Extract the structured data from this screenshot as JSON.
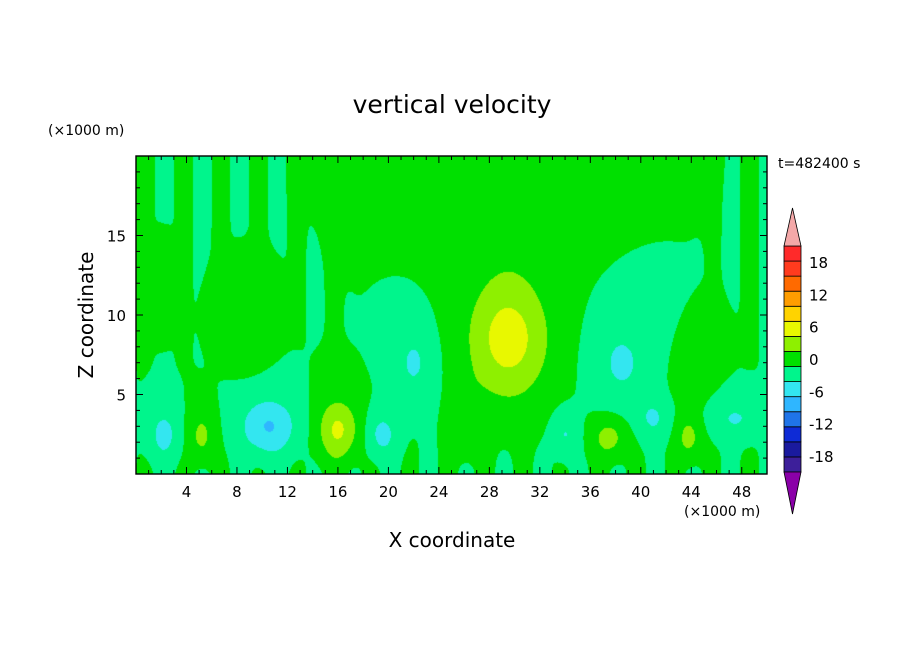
{
  "chart_data": {
    "type": "heatmap",
    "title": "vertical velocity",
    "xlabel": "X coordinate",
    "ylabel": "Z coordinate",
    "x_unit": "(×1000 m)",
    "y_unit": "(×1000 m)",
    "time_label": "t=482400 s",
    "xlim": [
      0,
      50
    ],
    "ylim": [
      0,
      20
    ],
    "x_ticks": [
      4,
      8,
      12,
      16,
      20,
      24,
      28,
      32,
      36,
      40,
      44,
      48
    ],
    "y_ticks": [
      5,
      10,
      15
    ],
    "colorbar": {
      "levels": [
        -21,
        -18,
        -15,
        -12,
        -9,
        -6,
        -3,
        0,
        3,
        6,
        9,
        12,
        15,
        18,
        21
      ],
      "tick_labels": [
        18,
        12,
        6,
        0,
        -6,
        -12,
        -18
      ],
      "colors": [
        "#3d1f9a",
        "#1a1a9e",
        "#0e2bd6",
        "#1f74e8",
        "#2fb6ff",
        "#33e6f0",
        "#00f58c",
        "#00e000",
        "#8ef000",
        "#e8f800",
        "#ffd300",
        "#ff9d00",
        "#ff6a00",
        "#ff3b1e",
        "#ff2a2a"
      ],
      "overflow_top": "#f4a8a8",
      "overflow_bottom": "#8a00a8"
    },
    "background_level_color": "#00f58c",
    "features": [
      {
        "kind": "updraft",
        "x": 29.5,
        "z": 8.5,
        "sx": 3.2,
        "sz": 3.8,
        "w": 7.5
      },
      {
        "kind": "updraft",
        "x": 29.5,
        "z": 16.0,
        "sx": 4.2,
        "sz": 4.0,
        "w": 1.6
      },
      {
        "kind": "updraft",
        "x": 30.5,
        "z": 19.5,
        "sx": 3.5,
        "sz": 1.5,
        "w": 1.5
      },
      {
        "kind": "updraft",
        "x": 16.0,
        "z": 2.8,
        "sx": 1.6,
        "sz": 1.9,
        "w": 6.5
      },
      {
        "kind": "updraft",
        "x": 5.2,
        "z": 2.4,
        "sx": 1.0,
        "sz": 1.6,
        "w": 3.8
      },
      {
        "kind": "updraft",
        "x": 37.5,
        "z": 2.3,
        "sx": 1.4,
        "sz": 1.3,
        "w": 4.2
      },
      {
        "kind": "updraft",
        "x": 43.8,
        "z": 2.3,
        "sx": 1.0,
        "sz": 1.4,
        "w": 4.0
      },
      {
        "kind": "updraft",
        "x": 26.2,
        "z": 3.5,
        "sx": 1.1,
        "sz": 2.2,
        "w": 2.4
      },
      {
        "kind": "updraft",
        "x": 8.8,
        "z": 8.5,
        "sx": 1.4,
        "sz": 1.8,
        "w": 1.3
      },
      {
        "kind": "updraft",
        "x": 2.0,
        "z": 11.0,
        "sx": 0.7,
        "sz": 1.3,
        "w": 1.3
      },
      {
        "kind": "updraft",
        "x": 44.0,
        "z": 6.0,
        "sx": 1.6,
        "sz": 2.0,
        "w": 1.2
      },
      {
        "kind": "downdraft",
        "x": 10.5,
        "z": 3.0,
        "sx": 2.2,
        "sz": 1.8,
        "w": -6.2
      },
      {
        "kind": "downdraft",
        "x": 2.2,
        "z": 2.5,
        "sx": 1.2,
        "sz": 1.6,
        "w": -4.0
      },
      {
        "kind": "downdraft",
        "x": 22.0,
        "z": 7.0,
        "sx": 1.6,
        "sz": 2.4,
        "w": -3.4
      },
      {
        "kind": "downdraft",
        "x": 38.5,
        "z": 7.0,
        "sx": 2.3,
        "sz": 2.8,
        "w": -3.5
      },
      {
        "kind": "downdraft",
        "x": 19.5,
        "z": 2.5,
        "sx": 1.2,
        "sz": 1.4,
        "w": -4.0
      },
      {
        "kind": "downdraft",
        "x": 47.5,
        "z": 3.5,
        "sx": 2.0,
        "sz": 1.2,
        "w": -3.2
      },
      {
        "kind": "downdraft",
        "x": 34.0,
        "z": 2.5,
        "sx": 1.0,
        "sz": 1.4,
        "w": -3.2
      },
      {
        "kind": "downdraft",
        "x": 41.0,
        "z": 3.5,
        "sx": 1.3,
        "sz": 1.3,
        "w": -3.2
      }
    ]
  }
}
